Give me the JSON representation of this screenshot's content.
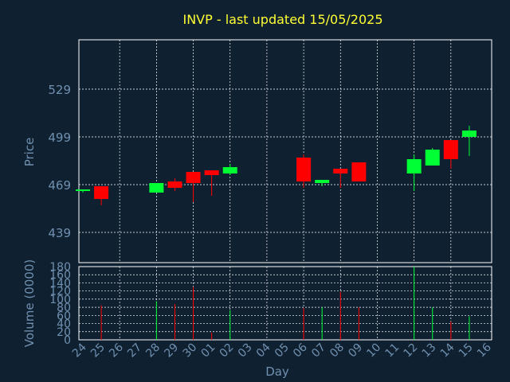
{
  "chart_data": {
    "type": "candlestick",
    "title": "INVP - last updated 15/05/2025",
    "xlabel": "Day",
    "ylabel_price": "Price",
    "ylabel_volume": "Volume (0000)",
    "price_ticks": [
      439,
      469,
      499,
      529
    ],
    "price_ylim": [
      420,
      560
    ],
    "volume_ticks": [
      0,
      20,
      40,
      60,
      80,
      100,
      120,
      140,
      160,
      180
    ],
    "volume_ylim": [
      0,
      180
    ],
    "grid": true,
    "days": [
      "24",
      "25",
      "26",
      "27",
      "28",
      "29",
      "30",
      "01",
      "02",
      "03",
      "04",
      "05",
      "06",
      "07",
      "08",
      "09",
      "10",
      "11",
      "12",
      "13",
      "14",
      "15",
      "16"
    ],
    "candles": [
      {
        "day": "24",
        "open": 465,
        "high": 466,
        "low": 464,
        "close": 466,
        "volume": 0
      },
      {
        "day": "25",
        "open": 468,
        "high": 468,
        "low": 456,
        "close": 460,
        "volume": 85
      },
      {
        "day": "28",
        "open": 464,
        "high": 470,
        "low": 464,
        "close": 470,
        "volume": 95
      },
      {
        "day": "29",
        "open": 471,
        "high": 473,
        "low": 465,
        "close": 467,
        "volume": 88
      },
      {
        "day": "30",
        "open": 477,
        "high": 477,
        "low": 458,
        "close": 470,
        "volume": 130
      },
      {
        "day": "01",
        "open": 478,
        "high": 478,
        "low": 462,
        "close": 475,
        "volume": 18
      },
      {
        "day": "02",
        "open": 476,
        "high": 482,
        "low": 475,
        "close": 480,
        "volume": 73
      },
      {
        "day": "06",
        "open": 486,
        "high": 488,
        "low": 467,
        "close": 471,
        "volume": 78
      },
      {
        "day": "07",
        "open": 470,
        "high": 472,
        "low": 468,
        "close": 472,
        "volume": 80
      },
      {
        "day": "08",
        "open": 479,
        "high": 479,
        "low": 467,
        "close": 476,
        "volume": 118
      },
      {
        "day": "09",
        "open": 483,
        "high": 483,
        "low": 471,
        "close": 471,
        "volume": 80
      },
      {
        "day": "12",
        "open": 476,
        "high": 488,
        "low": 465,
        "close": 485,
        "volume": 180
      },
      {
        "day": "13",
        "open": 481,
        "high": 492,
        "low": 481,
        "close": 491,
        "volume": 80
      },
      {
        "day": "14",
        "open": 497,
        "high": 497,
        "low": 479,
        "close": 485,
        "volume": 45
      },
      {
        "day": "15",
        "open": 499,
        "high": 506,
        "low": 487,
        "close": 503,
        "volume": 58
      }
    ],
    "colors": {
      "up": "#00ff33",
      "down": "#ff0000",
      "background": "#0f2030",
      "title": "#ffff33",
      "axis_text": "#7090b0",
      "grid": "#ffffff"
    }
  }
}
